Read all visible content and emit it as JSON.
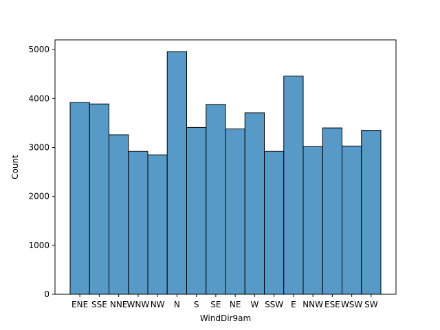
{
  "chart_data": {
    "type": "bar",
    "title": "",
    "xlabel": "WindDir9am",
    "ylabel": "Count",
    "categories": [
      "ENE",
      "SSE",
      "NNE",
      "WNW",
      "NW",
      "N",
      "S",
      "SE",
      "NE",
      "W",
      "SSW",
      "E",
      "NNW",
      "ESE",
      "WSW",
      "SW"
    ],
    "values": [
      3920,
      3890,
      3260,
      2920,
      2850,
      4960,
      3410,
      3880,
      3380,
      3710,
      2920,
      4460,
      3020,
      3400,
      3030,
      3350
    ],
    "ylim": [
      0,
      5200
    ],
    "yticks": [
      0,
      1000,
      2000,
      3000,
      4000,
      5000
    ],
    "bar_color": "#5799c7",
    "edge_color": "#000000",
    "grid": false,
    "legend": "none"
  }
}
